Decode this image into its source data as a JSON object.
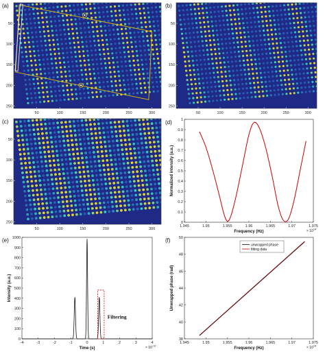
{
  "colors": {
    "bg_dark": "#1f2a86",
    "spot_cyan": "#2fd6c8",
    "spot_yellow": "#f3de27",
    "spot_green": "#a9e046",
    "roi_yellow": "#e6c000",
    "roi_white": "#ffffff",
    "curve_red": "#cc0000",
    "curve_black": "#111111",
    "filter_box": "#e00000"
  },
  "chart_data": [
    {
      "panel": "(a)",
      "type": "heatmap",
      "x_ticks": [
        "50",
        "100",
        "150",
        "200",
        "250",
        "300"
      ],
      "y_ticks": [
        "50",
        "100",
        "150",
        "200",
        "250"
      ],
      "xlim": [
        0,
        320
      ],
      "ylim": [
        0,
        256
      ],
      "overlay": "rotated-rectangle"
    },
    {
      "panel": "(b)",
      "type": "heatmap",
      "x_ticks": [
        "50",
        "100",
        "150",
        "200",
        "250",
        "300"
      ],
      "y_ticks": [
        "50",
        "100",
        "150",
        "200",
        "250"
      ],
      "xlim": [
        0,
        320
      ],
      "ylim": [
        0,
        256
      ]
    },
    {
      "panel": "(c)",
      "type": "heatmap",
      "x_ticks": [
        "50",
        "100",
        "150",
        "200",
        "250",
        "300"
      ],
      "y_ticks": [
        "50",
        "100",
        "150",
        "200",
        "250"
      ],
      "xlim": [
        0,
        320
      ],
      "ylim": [
        0,
        256
      ]
    },
    {
      "panel": "(d)",
      "type": "line",
      "xlabel": "Frequency (Hz)",
      "ylabel": "Normalized intensity (a.u.)",
      "x_multiplier": "× 10^14",
      "xlim": [
        1.945,
        1.975
      ],
      "ylim": [
        0,
        1
      ],
      "x_ticks": [
        "1.945",
        "1.95",
        "1.955",
        "1.96",
        "1.965",
        "1.97",
        "1.975"
      ],
      "y_ticks": [
        "0",
        "0.1",
        "0.2",
        "0.3",
        "0.4",
        "0.5",
        "0.6",
        "0.7",
        "0.8",
        "0.9",
        "1"
      ],
      "series": [
        {
          "x": [
            1.9485,
            1.95,
            1.9515,
            1.953,
            1.9542,
            1.955,
            1.9558,
            1.957,
            1.9585,
            1.96,
            1.9612,
            1.9625,
            1.964,
            1.9655,
            1.9668,
            1.968,
            1.9692,
            1.9705,
            1.972,
            1.9733
          ],
          "y": [
            0.88,
            0.73,
            0.52,
            0.28,
            0.08,
            0.01,
            0.06,
            0.25,
            0.55,
            0.85,
            0.97,
            0.91,
            0.71,
            0.43,
            0.16,
            0.02,
            0.03,
            0.21,
            0.52,
            0.79
          ]
        }
      ]
    },
    {
      "panel": "(e)",
      "type": "line",
      "xlabel": "Time (s)",
      "ylabel": "Intensity (a.u.)",
      "x_multiplier": "× 10^-12",
      "xlim": [
        -4,
        4
      ],
      "ylim": [
        0,
        1000
      ],
      "x_ticks": [
        "-4",
        "-3",
        "-2",
        "-1",
        "0",
        "1",
        "2",
        "3",
        "4"
      ],
      "y_ticks": [
        "0",
        "100",
        "200",
        "300",
        "400",
        "500",
        "600",
        "700",
        "800",
        "900",
        "1000"
      ],
      "annotation": "Filtering",
      "filter_box_x": [
        0.65,
        1.05
      ],
      "filter_box_y": [
        0,
        480
      ],
      "series": [
        {
          "peaks": [
            {
              "center": -0.75,
              "height": 410,
              "width": 0.055
            },
            {
              "center": 0.0,
              "height": 985,
              "width": 0.045
            },
            {
              "center": 0.75,
              "height": 410,
              "width": 0.055
            }
          ]
        }
      ]
    },
    {
      "panel": "(f)",
      "type": "line",
      "xlabel": "Frequency (Hz)",
      "ylabel": "Unwrapped phase (rad)",
      "x_multiplier": "× 10^14",
      "xlim": [
        1.945,
        1.975
      ],
      "ylim": [
        38,
        50
      ],
      "x_ticks": [
        "1.945",
        "1.95",
        "1.955",
        "1.96",
        "1.965",
        "1.97",
        "1.975"
      ],
      "y_ticks": [
        "38",
        "40",
        "42",
        "44",
        "46",
        "48",
        "50"
      ],
      "legend": "top-right",
      "series": [
        {
          "name": "unwrapped phase",
          "x": [
            1.9485,
            1.973
          ],
          "y": [
            38.4,
            49.5
          ]
        },
        {
          "name": "fitting data",
          "x": [
            1.9485,
            1.973
          ],
          "y": [
            38.4,
            49.5
          ]
        }
      ]
    }
  ]
}
